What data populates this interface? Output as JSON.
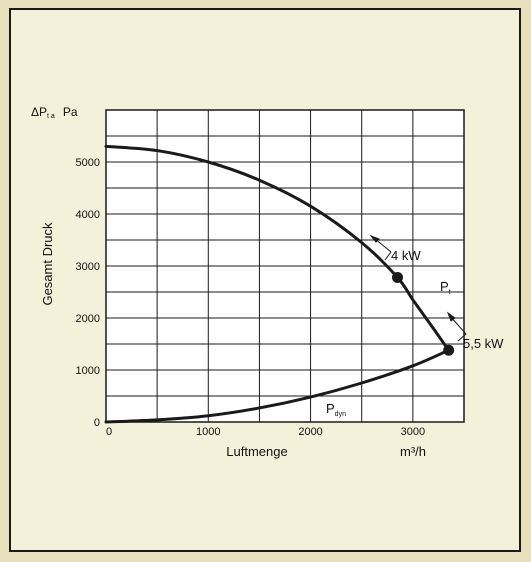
{
  "chart_data": {
    "type": "line",
    "title": "",
    "ylabel_top": "ΔP",
    "ylabel_top_sub": "t a",
    "yunit": "Pa",
    "ylabel": "Gesamt Druck",
    "xlabel": "Luftmenge",
    "xunit": "m³/h",
    "xlim": [
      0,
      3500
    ],
    "ylim": [
      0,
      6000
    ],
    "xticks": [
      0,
      1000,
      2000,
      3000
    ],
    "yticks": [
      0,
      1000,
      2000,
      3000,
      4000,
      5000
    ],
    "xtick_labels": [
      "0",
      "1000",
      "2000",
      "3000"
    ],
    "ytick_labels": [
      "0",
      "1000",
      "2000",
      "3000",
      "4000",
      "5000"
    ],
    "x_minor_step": 500,
    "y_minor_step": 500,
    "grid": true,
    "series": [
      {
        "name": "P_t",
        "label_main": "P",
        "label_sub": "t",
        "x": [
          0,
          500,
          1000,
          1500,
          2000,
          2500,
          2850,
          3000,
          3200,
          3350
        ],
        "y": [
          5300,
          5220,
          5000,
          4650,
          4150,
          3450,
          2780,
          2350,
          1800,
          1380
        ]
      },
      {
        "name": "P_dyn",
        "label_main": "P",
        "label_sub": "dyn",
        "x": [
          0,
          500,
          1000,
          1500,
          2000,
          2500,
          3000,
          3350
        ],
        "y": [
          0,
          40,
          120,
          270,
          480,
          750,
          1080,
          1380
        ]
      }
    ],
    "operating_points": [
      {
        "label": "4 kW",
        "x": 2850,
        "y": 2780
      },
      {
        "label": "5,5 kW",
        "x": 3350,
        "y": 1380
      }
    ],
    "colors": {
      "line": "#1a1a1a",
      "grid": "#1a1a1a",
      "plot_bg": "#ffffff",
      "panel_bg": "#f4f1da",
      "outer_bg": "#e8e0bc"
    }
  }
}
